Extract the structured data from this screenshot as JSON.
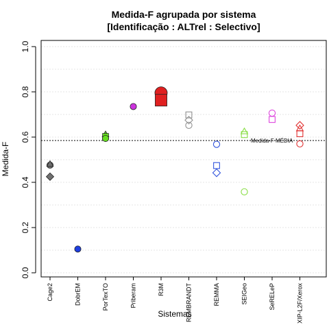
{
  "chart_data": {
    "type": "scatter",
    "title": "Medida-F agrupada por sistema",
    "subtitle": "[Identificação : ALTrel : Selectivo]",
    "xlabel": "Sistemas",
    "ylabel": "Medida-F",
    "ylim": [
      0,
      1
    ],
    "yticks": [
      "0.0",
      "0.2",
      "0.4",
      "0.6",
      "0.8",
      "1.0"
    ],
    "grid": true,
    "categories": [
      "Cage2",
      "DobrEM",
      "PorTexTO",
      "Priberam",
      "R3M",
      "REMBRANDT",
      "REMMA",
      "SEIGeo",
      "SeRELeP",
      "XIP-L2F/Xerox"
    ],
    "reference_line": {
      "label": "Medida-F MÉDIA",
      "value": 0.585
    },
    "series": [
      {
        "category": "Cage2",
        "color": "#707070",
        "filled": true,
        "points": [
          {
            "shape": "circle",
            "y": 0.476,
            "size": 1
          },
          {
            "shape": "triangle",
            "y": 0.481,
            "size": 1
          },
          {
            "shape": "diamond",
            "y": 0.425,
            "size": 1
          }
        ]
      },
      {
        "category": "DobrEM",
        "color": "#1f3fe0",
        "filled": true,
        "points": [
          {
            "shape": "circle",
            "y": 0.105,
            "size": 1
          }
        ]
      },
      {
        "category": "PorTexTO",
        "color": "#66dd22",
        "filled": true,
        "points": [
          {
            "shape": "triangle",
            "y": 0.612,
            "size": 1
          },
          {
            "shape": "square",
            "y": 0.603,
            "size": 1
          },
          {
            "shape": "circle",
            "y": 0.594,
            "size": 1
          }
        ]
      },
      {
        "category": "Priberam",
        "color": "#cc33dd",
        "filled": true,
        "points": [
          {
            "shape": "circle",
            "y": 0.735,
            "size": 1
          }
        ]
      },
      {
        "category": "R3M",
        "color": "#e02020",
        "filled": true,
        "points": [
          {
            "shape": "circle",
            "y": 0.795,
            "size": 2
          },
          {
            "shape": "square",
            "y": 0.763,
            "size": 2
          }
        ]
      },
      {
        "category": "REMBRANDT",
        "color": "#909090",
        "filled": false,
        "points": [
          {
            "shape": "square",
            "y": 0.698,
            "size": 1
          },
          {
            "shape": "diamond",
            "y": 0.675,
            "size": 1
          },
          {
            "shape": "circle",
            "y": 0.652,
            "size": 1
          }
        ]
      },
      {
        "category": "REMMA",
        "color": "#3355dd",
        "filled": false,
        "points": [
          {
            "shape": "circle",
            "y": 0.568,
            "size": 1
          },
          {
            "shape": "square",
            "y": 0.474,
            "size": 1
          },
          {
            "shape": "diamond",
            "y": 0.442,
            "size": 1
          }
        ]
      },
      {
        "category": "SEIGeo",
        "color": "#88dd44",
        "filled": false,
        "points": [
          {
            "shape": "triangle",
            "y": 0.625,
            "size": 1
          },
          {
            "shape": "square",
            "y": 0.611,
            "size": 1
          },
          {
            "shape": "circle",
            "y": 0.358,
            "size": 1
          }
        ]
      },
      {
        "category": "SeRELeP",
        "color": "#dd44dd",
        "filled": false,
        "points": [
          {
            "shape": "circle",
            "y": 0.706,
            "size": 1
          },
          {
            "shape": "square",
            "y": 0.678,
            "size": 1
          }
        ]
      },
      {
        "category": "XIP-L2F/Xerox",
        "color": "#e03030",
        "filled": false,
        "points": [
          {
            "shape": "diamond",
            "y": 0.652,
            "size": 1
          },
          {
            "shape": "triangle",
            "y": 0.638,
            "size": 1
          },
          {
            "shape": "square",
            "y": 0.615,
            "size": 1
          },
          {
            "shape": "circle",
            "y": 0.57,
            "size": 1
          }
        ]
      }
    ]
  }
}
